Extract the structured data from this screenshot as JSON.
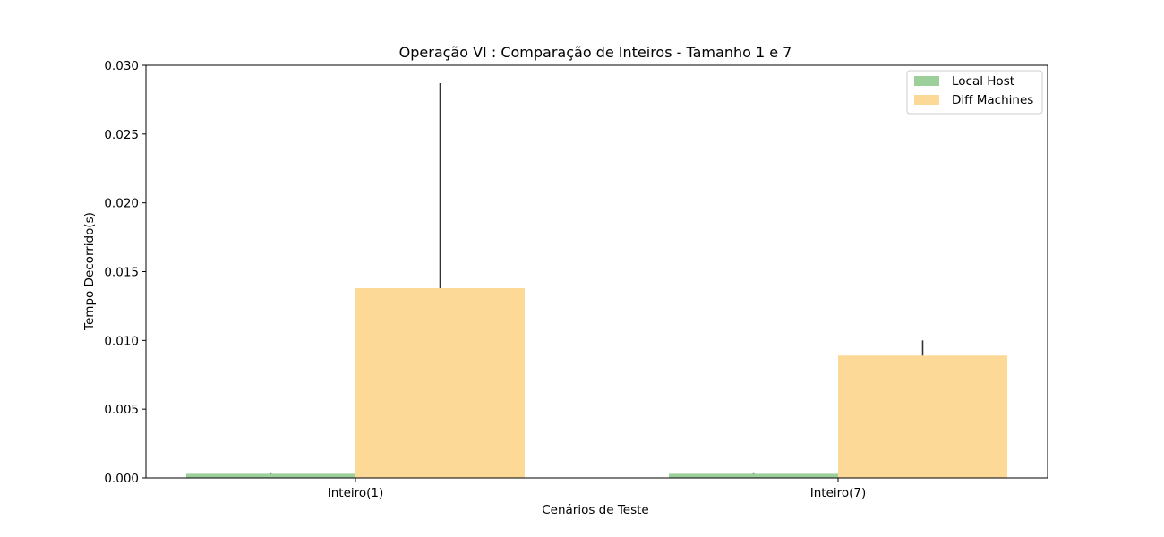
{
  "chart_data": {
    "type": "bar",
    "title": "Operação VI : Comparação de Inteiros - Tamanho 1 e 7",
    "xlabel": "Cenários de Teste",
    "ylabel": "Tempo Decorrido(s)",
    "categories": [
      "Inteiro(1)",
      "Inteiro(7)"
    ],
    "ylim": [
      0,
      0.03
    ],
    "yticks": [
      "0.000",
      "0.005",
      "0.010",
      "0.015",
      "0.020",
      "0.025",
      "0.030"
    ],
    "grid": false,
    "legend_position": "top-right",
    "series": [
      {
        "name": "Local Host",
        "color": "#9ccf9a",
        "values": [
          0.0003,
          0.0003
        ],
        "error": [
          0.0001,
          0.0001
        ]
      },
      {
        "name": "Diff Machines",
        "color": "#fdd998",
        "values": [
          0.0138,
          0.0089
        ],
        "error": [
          0.0149,
          0.0011
        ]
      }
    ]
  }
}
